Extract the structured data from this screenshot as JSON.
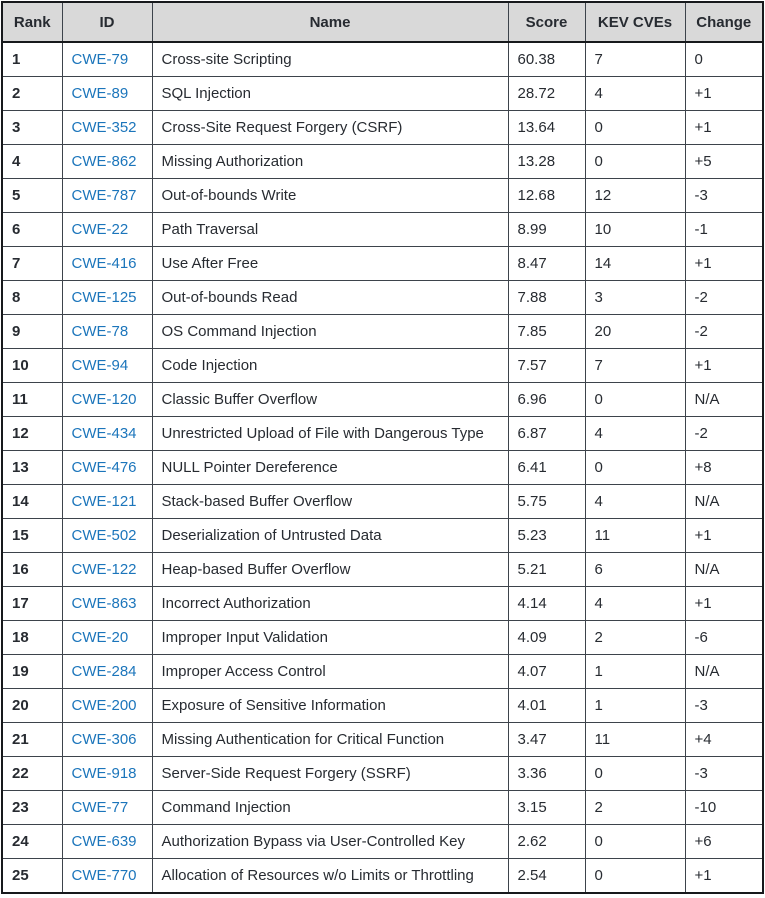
{
  "colors": {
    "link_color": "#1b75bb",
    "header_bg": "#d9d9d9",
    "border_color": "#3d434b",
    "outer_border_color": "#17191c",
    "text_color": "#272b31"
  },
  "table": {
    "columns": [
      "Rank",
      "ID",
      "Name",
      "Score",
      "KEV CVEs",
      "Change"
    ],
    "rows": [
      {
        "rank": "1",
        "id": "CWE-79",
        "name": "Cross-site Scripting",
        "score": "60.38",
        "kev_cves": "7",
        "change": "0"
      },
      {
        "rank": "2",
        "id": "CWE-89",
        "name": "SQL Injection",
        "score": "28.72",
        "kev_cves": "4",
        "change": "+1"
      },
      {
        "rank": "3",
        "id": "CWE-352",
        "name": "Cross-Site Request Forgery (CSRF)",
        "score": "13.64",
        "kev_cves": "0",
        "change": "+1"
      },
      {
        "rank": "4",
        "id": "CWE-862",
        "name": "Missing Authorization",
        "score": "13.28",
        "kev_cves": "0",
        "change": "+5"
      },
      {
        "rank": "5",
        "id": "CWE-787",
        "name": "Out-of-bounds Write",
        "score": "12.68",
        "kev_cves": "12",
        "change": "-3"
      },
      {
        "rank": "6",
        "id": "CWE-22",
        "name": "Path Traversal",
        "score": "8.99",
        "kev_cves": "10",
        "change": "-1"
      },
      {
        "rank": "7",
        "id": "CWE-416",
        "name": "Use After Free",
        "score": "8.47",
        "kev_cves": "14",
        "change": "+1"
      },
      {
        "rank": "8",
        "id": "CWE-125",
        "name": "Out-of-bounds Read",
        "score": "7.88",
        "kev_cves": "3",
        "change": "-2"
      },
      {
        "rank": "9",
        "id": "CWE-78",
        "name": "OS Command Injection",
        "score": "7.85",
        "kev_cves": "20",
        "change": "-2"
      },
      {
        "rank": "10",
        "id": "CWE-94",
        "name": "Code Injection",
        "score": "7.57",
        "kev_cves": "7",
        "change": "+1"
      },
      {
        "rank": "11",
        "id": "CWE-120",
        "name": "Classic Buffer Overflow",
        "score": "6.96",
        "kev_cves": "0",
        "change": "N/A"
      },
      {
        "rank": "12",
        "id": "CWE-434",
        "name": "Unrestricted Upload of File with Dangerous Type",
        "score": "6.87",
        "kev_cves": "4",
        "change": "-2"
      },
      {
        "rank": "13",
        "id": "CWE-476",
        "name": "NULL Pointer Dereference",
        "score": "6.41",
        "kev_cves": "0",
        "change": "+8"
      },
      {
        "rank": "14",
        "id": "CWE-121",
        "name": "Stack-based Buffer Overflow",
        "score": "5.75",
        "kev_cves": "4",
        "change": "N/A"
      },
      {
        "rank": "15",
        "id": "CWE-502",
        "name": "Deserialization of Untrusted Data",
        "score": "5.23",
        "kev_cves": "11",
        "change": "+1"
      },
      {
        "rank": "16",
        "id": "CWE-122",
        "name": "Heap-based Buffer Overflow",
        "score": "5.21",
        "kev_cves": "6",
        "change": "N/A"
      },
      {
        "rank": "17",
        "id": "CWE-863",
        "name": "Incorrect Authorization",
        "score": "4.14",
        "kev_cves": "4",
        "change": "+1"
      },
      {
        "rank": "18",
        "id": "CWE-20",
        "name": "Improper Input Validation",
        "score": "4.09",
        "kev_cves": "2",
        "change": "-6"
      },
      {
        "rank": "19",
        "id": "CWE-284",
        "name": "Improper Access Control",
        "score": "4.07",
        "kev_cves": "1",
        "change": "N/A"
      },
      {
        "rank": "20",
        "id": "CWE-200",
        "name": "Exposure of Sensitive Information",
        "score": "4.01",
        "kev_cves": "1",
        "change": "-3"
      },
      {
        "rank": "21",
        "id": "CWE-306",
        "name": "Missing Authentication for Critical Function",
        "score": "3.47",
        "kev_cves": "11",
        "change": "+4"
      },
      {
        "rank": "22",
        "id": "CWE-918",
        "name": "Server-Side Request Forgery (SSRF)",
        "score": "3.36",
        "kev_cves": "0",
        "change": "-3"
      },
      {
        "rank": "23",
        "id": "CWE-77",
        "name": "Command Injection",
        "score": "3.15",
        "kev_cves": "2",
        "change": "-10"
      },
      {
        "rank": "24",
        "id": "CWE-639",
        "name": "Authorization Bypass via User-Controlled Key",
        "score": "2.62",
        "kev_cves": "0",
        "change": "+6"
      },
      {
        "rank": "25",
        "id": "CWE-770",
        "name": "Allocation of Resources w/o Limits or Throttling",
        "score": "2.54",
        "kev_cves": "0",
        "change": "+1"
      }
    ]
  }
}
